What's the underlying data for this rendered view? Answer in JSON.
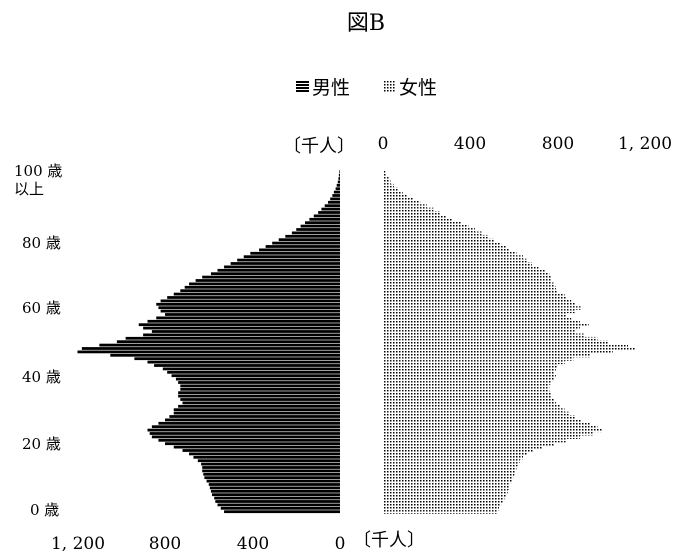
{
  "chart_data": {
    "type": "bar",
    "subtype": "population-pyramid",
    "title": "図B",
    "unit_label": "〔千人〕",
    "legend": {
      "placement": "top",
      "entries": [
        {
          "name": "男性",
          "pattern": "horizontal-lines"
        },
        {
          "name": "女性",
          "pattern": "dots"
        }
      ]
    },
    "age_labels": [
      {
        "age": 0,
        "text": "0 歳"
      },
      {
        "age": 20,
        "text": "20 歳"
      },
      {
        "age": 40,
        "text": "40 歳"
      },
      {
        "age": 60,
        "text": "60 歳"
      },
      {
        "age": 80,
        "text": "80 歳"
      },
      {
        "age": 100,
        "text": "100 歳",
        "text2": "以上"
      }
    ],
    "male_axis": {
      "ticks": [
        1200,
        800,
        400,
        0
      ],
      "tick_labels": [
        "1, 200",
        "800",
        "400",
        "0"
      ],
      "range": [
        0,
        1200
      ],
      "placement": "bottom"
    },
    "female_axis": {
      "ticks": [
        0,
        400,
        800,
        1200
      ],
      "tick_labels": [
        "0",
        "400",
        "800",
        "1, 200"
      ],
      "range": [
        0,
        1200
      ],
      "placement": "top"
    },
    "ages": [
      0,
      1,
      2,
      3,
      4,
      5,
      6,
      7,
      8,
      9,
      10,
      11,
      12,
      13,
      14,
      15,
      16,
      17,
      18,
      19,
      20,
      21,
      22,
      23,
      24,
      25,
      26,
      27,
      28,
      29,
      30,
      31,
      32,
      33,
      34,
      35,
      36,
      37,
      38,
      39,
      40,
      41,
      42,
      43,
      44,
      45,
      46,
      47,
      48,
      49,
      50,
      51,
      52,
      53,
      54,
      55,
      56,
      57,
      58,
      59,
      60,
      61,
      62,
      63,
      64,
      65,
      66,
      67,
      68,
      69,
      70,
      71,
      72,
      73,
      74,
      75,
      76,
      77,
      78,
      79,
      80,
      81,
      82,
      83,
      84,
      85,
      86,
      87,
      88,
      89,
      90,
      91,
      92,
      93,
      94,
      95,
      96,
      97,
      98,
      99,
      100
    ],
    "series": [
      {
        "name": "男性",
        "values": [
          530,
          545,
          560,
          570,
          575,
          585,
          590,
          595,
          600,
          610,
          620,
          625,
          630,
          630,
          635,
          650,
          670,
          690,
          720,
          760,
          800,
          830,
          860,
          870,
          880,
          860,
          830,
          800,
          780,
          760,
          760,
          740,
          720,
          730,
          740,
          740,
          730,
          730,
          740,
          750,
          770,
          790,
          810,
          850,
          880,
          940,
          1050,
          1200,
          1180,
          1100,
          1020,
          980,
          900,
          860,
          900,
          920,
          880,
          840,
          800,
          820,
          830,
          840,
          820,
          790,
          760,
          730,
          710,
          690,
          660,
          630,
          590,
          560,
          530,
          500,
          470,
          440,
          410,
          370,
          340,
          310,
          280,
          250,
          220,
          200,
          180,
          160,
          140,
          120,
          100,
          85,
          70,
          55,
          45,
          35,
          28,
          20,
          15,
          10,
          7,
          5,
          3
        ]
      },
      {
        "name": "女性",
        "values": [
          520,
          530,
          540,
          550,
          555,
          565,
          570,
          575,
          580,
          590,
          595,
          600,
          605,
          610,
          615,
          625,
          640,
          660,
          690,
          730,
          780,
          840,
          900,
          960,
          1000,
          980,
          950,
          910,
          880,
          850,
          830,
          810,
          790,
          780,
          770,
          770,
          760,
          760,
          770,
          780,
          790,
          780,
          790,
          800,
          830,
          870,
          950,
          1050,
          1150,
          1120,
          1030,
          980,
          920,
          880,
          900,
          940,
          900,
          860,
          840,
          880,
          910,
          880,
          860,
          840,
          830,
          800,
          790,
          780,
          770,
          770,
          760,
          740,
          710,
          680,
          660,
          640,
          610,
          580,
          560,
          540,
          510,
          480,
          450,
          420,
          390,
          360,
          320,
          290,
          260,
          230,
          200,
          170,
          140,
          110,
          90,
          70,
          50,
          35,
          25,
          15,
          10
        ]
      }
    ]
  }
}
